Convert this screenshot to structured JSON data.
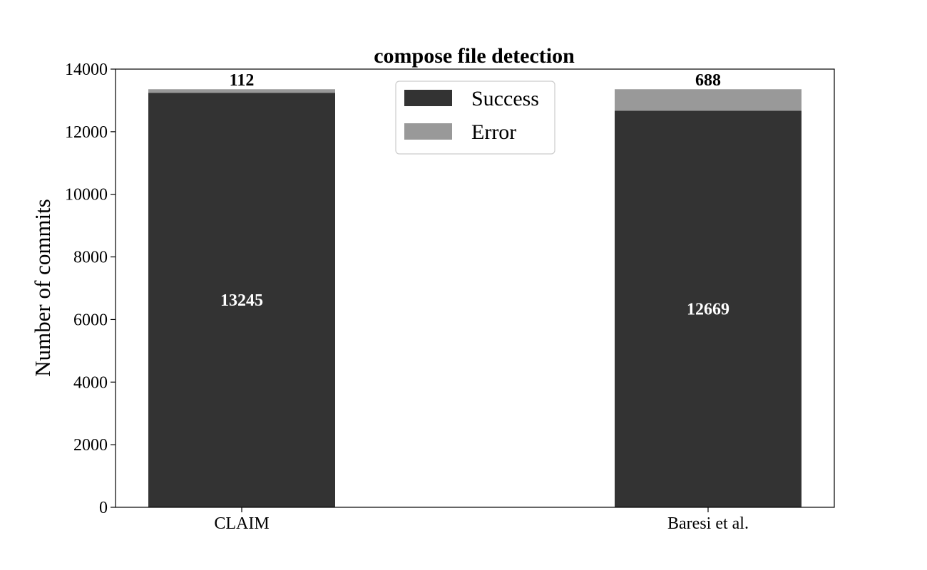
{
  "chart_data": {
    "type": "bar",
    "stacked": true,
    "title": "compose file detection",
    "xlabel": "",
    "ylabel": "Number of commits",
    "categories": [
      "CLAIM",
      "Baresi et al."
    ],
    "series": [
      {
        "name": "Success",
        "values": [
          13245,
          12669
        ],
        "color": "#333333"
      },
      {
        "name": "Error",
        "values": [
          112,
          688
        ],
        "color": "#999999"
      }
    ],
    "ylim": [
      0,
      14000
    ],
    "yticks": [
      0,
      2000,
      4000,
      6000,
      8000,
      10000,
      12000,
      14000
    ],
    "ytick_labels": [
      "0",
      "2000",
      "4000",
      "6000",
      "8000",
      "10000",
      "12000",
      "14000"
    ],
    "data_labels": {
      "Success": [
        "13245",
        "12669"
      ],
      "Error": [
        "112",
        "688"
      ]
    },
    "legend_position": "top-center",
    "grid": false
  }
}
